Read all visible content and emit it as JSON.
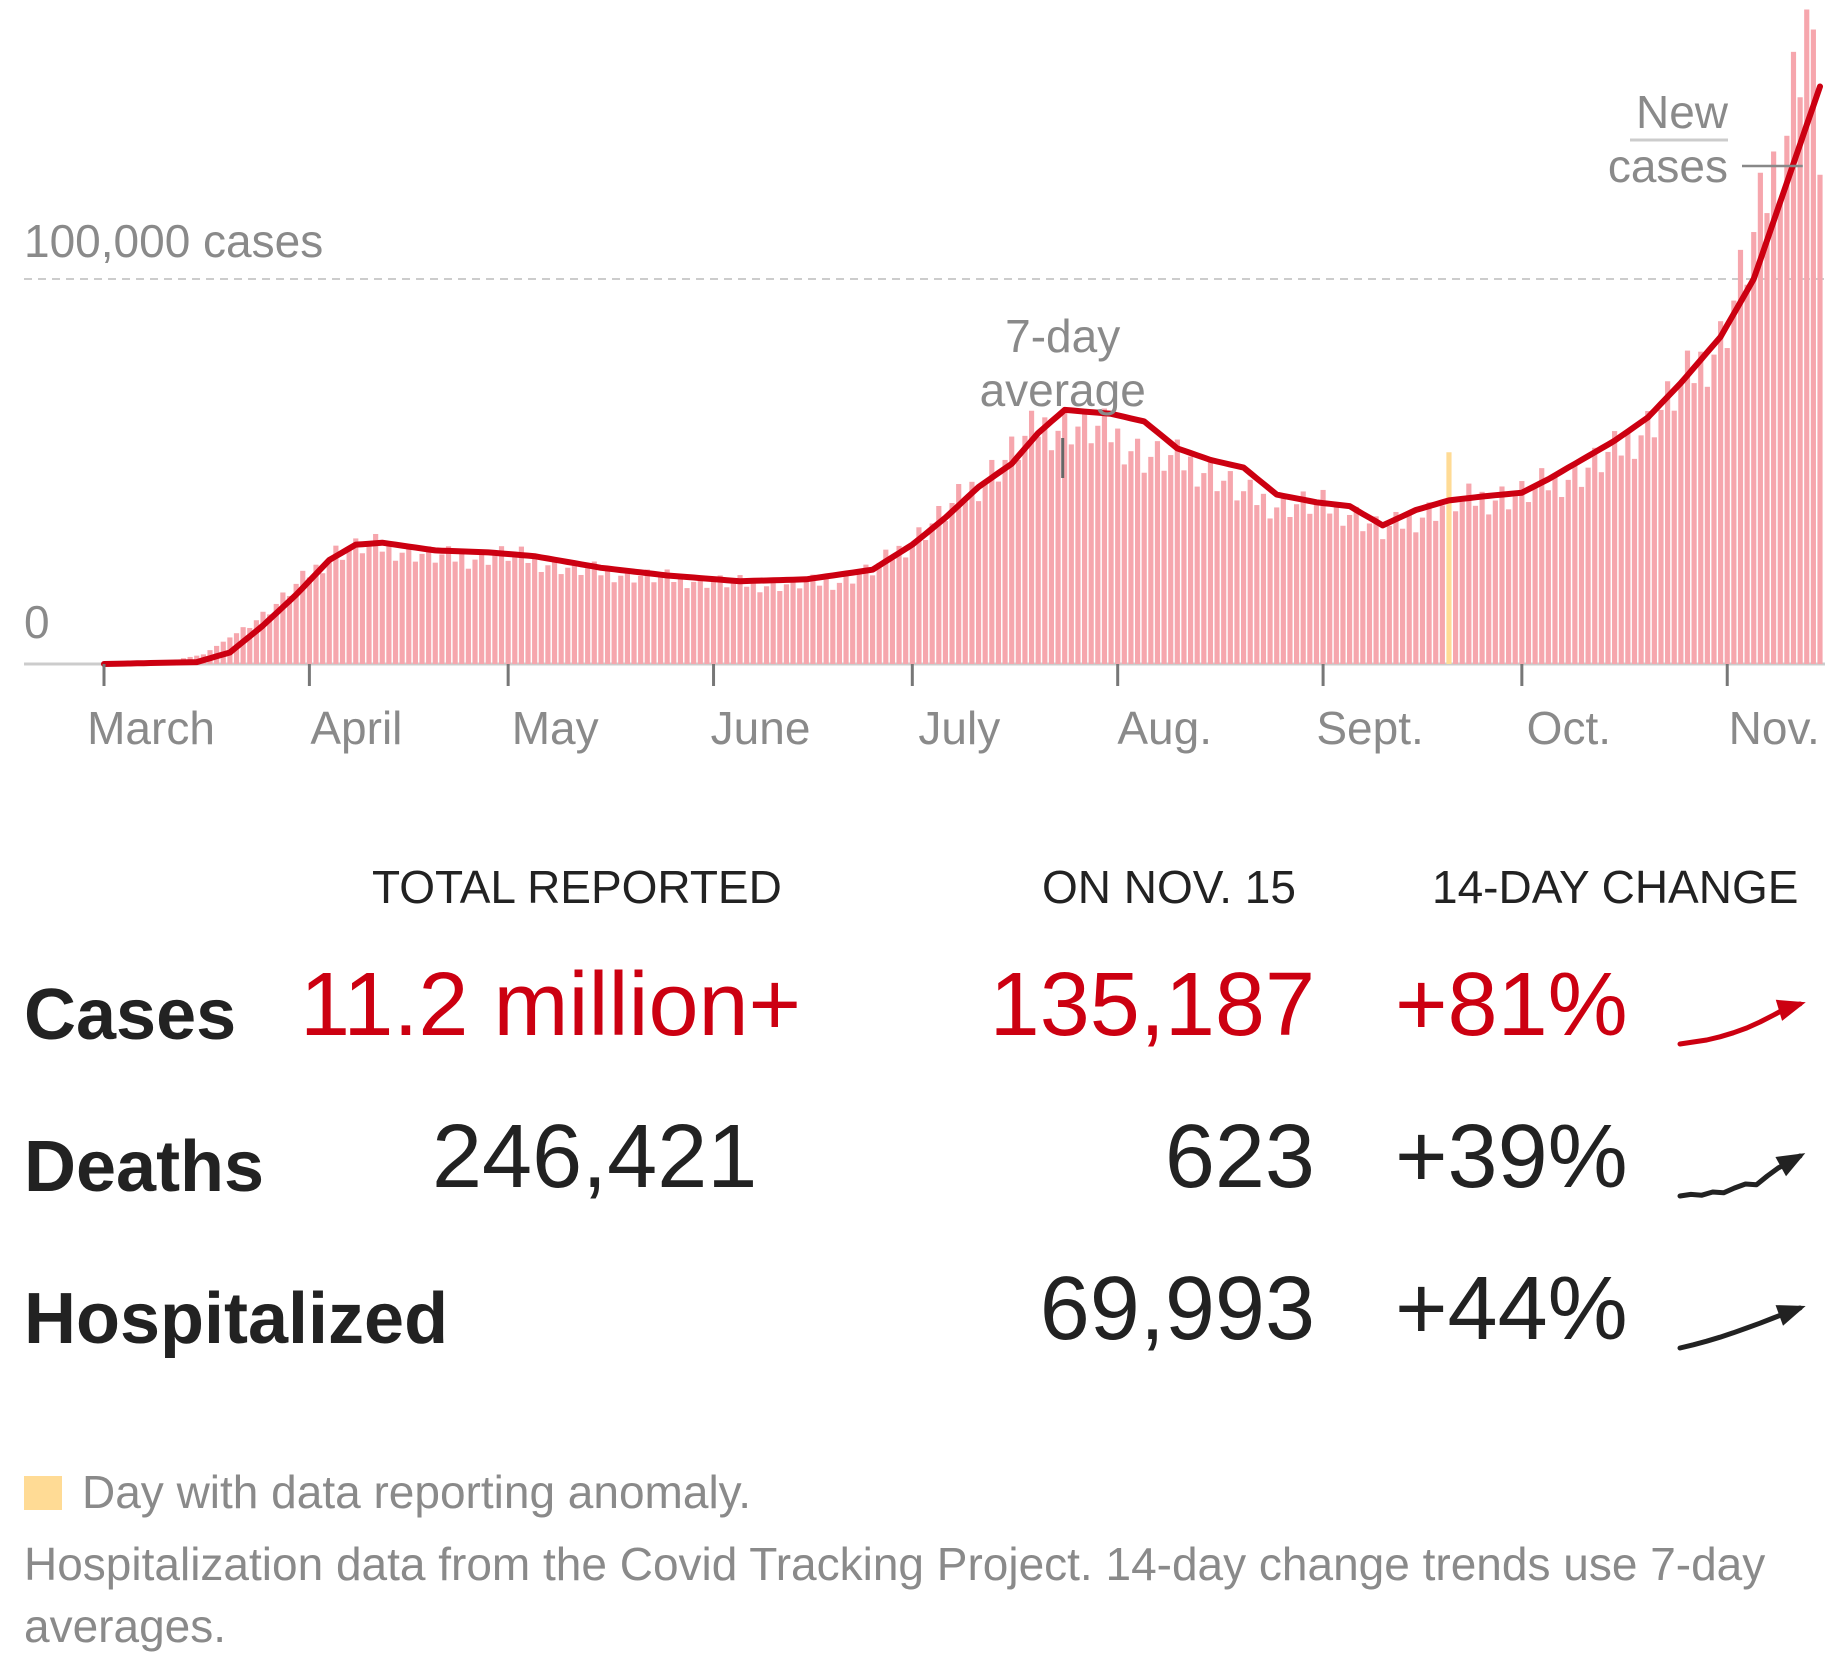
{
  "chart_data": {
    "type": "bar",
    "title": "",
    "ylim": [
      0,
      160000
    ],
    "y_gridline": {
      "value": 100000,
      "label": "100,000 cases"
    },
    "y_zero_label": "0",
    "x_start": "2020-03-01",
    "x_end": "2020-11-15",
    "x_ticks": [
      {
        "label": "March",
        "date": "2020-03-01"
      },
      {
        "label": "April",
        "date": "2020-04-01"
      },
      {
        "label": "May",
        "date": "2020-05-01"
      },
      {
        "label": "June",
        "date": "2020-06-01"
      },
      {
        "label": "July",
        "date": "2020-07-01"
      },
      {
        "label": "Aug.",
        "date": "2020-08-01"
      },
      {
        "label": "Sept.",
        "date": "2020-09-01"
      },
      {
        "label": "Oct.",
        "date": "2020-10-01"
      },
      {
        "label": "Nov.",
        "date": "2020-11-01"
      }
    ],
    "anomaly_date": "2020-09-20",
    "series": [
      {
        "name": "New cases",
        "style": "bars",
        "color": "#f6a6ad",
        "anchors": [
          [
            "2020-03-01",
            0
          ],
          [
            "2020-03-10",
            500
          ],
          [
            "2020-03-16",
            2500
          ],
          [
            "2020-03-21",
            8000
          ],
          [
            "2020-03-26",
            14000
          ],
          [
            "2020-03-31",
            22000
          ],
          [
            "2020-04-05",
            29000
          ],
          [
            "2020-04-10",
            31000
          ],
          [
            "2020-04-15",
            29500
          ],
          [
            "2020-04-20",
            28000
          ],
          [
            "2020-04-25",
            27500
          ],
          [
            "2020-05-01",
            28500
          ],
          [
            "2020-05-10",
            25000
          ],
          [
            "2020-05-20",
            23000
          ],
          [
            "2020-05-31",
            21500
          ],
          [
            "2020-06-10",
            20500
          ],
          [
            "2020-06-20",
            21500
          ],
          [
            "2020-06-25",
            24500
          ],
          [
            "2020-07-01",
            32000
          ],
          [
            "2020-07-05",
            38000
          ],
          [
            "2020-07-10",
            45500
          ],
          [
            "2020-07-15",
            53000
          ],
          [
            "2020-07-20",
            61500
          ],
          [
            "2020-07-25",
            62000
          ],
          [
            "2020-07-31",
            60000
          ],
          [
            "2020-08-05",
            54000
          ],
          [
            "2020-08-10",
            53000
          ],
          [
            "2020-08-15",
            50000
          ],
          [
            "2020-08-20",
            44000
          ],
          [
            "2020-08-25",
            41500
          ],
          [
            "2020-08-31",
            41500
          ],
          [
            "2020-09-05",
            39500
          ],
          [
            "2020-09-10",
            34500
          ],
          [
            "2020-09-15",
            38000
          ],
          [
            "2020-09-20",
            42000
          ],
          [
            "2020-09-25",
            43000
          ],
          [
            "2020-10-01",
            44000
          ],
          [
            "2020-10-05",
            47000
          ],
          [
            "2020-10-10",
            50000
          ],
          [
            "2020-10-15",
            55000
          ],
          [
            "2020-10-20",
            62000
          ],
          [
            "2020-10-25",
            72000
          ],
          [
            "2020-10-31",
            84000
          ],
          [
            "2020-11-05",
            110000
          ],
          [
            "2020-11-10",
            140000
          ],
          [
            "2020-11-13",
            170000
          ],
          [
            "2020-11-15",
            135187
          ]
        ]
      },
      {
        "name": "7-day average",
        "style": "line",
        "color": "#cc0011",
        "anchors": [
          [
            "2020-03-01",
            0
          ],
          [
            "2020-03-15",
            500
          ],
          [
            "2020-03-20",
            3000
          ],
          [
            "2020-03-25",
            10000
          ],
          [
            "2020-03-30",
            18000
          ],
          [
            "2020-04-04",
            27000
          ],
          [
            "2020-04-08",
            31000
          ],
          [
            "2020-04-12",
            31500
          ],
          [
            "2020-04-20",
            29500
          ],
          [
            "2020-04-28",
            29000
          ],
          [
            "2020-05-05",
            28000
          ],
          [
            "2020-05-15",
            25000
          ],
          [
            "2020-05-25",
            23000
          ],
          [
            "2020-06-05",
            21500
          ],
          [
            "2020-06-15",
            22000
          ],
          [
            "2020-06-25",
            24500
          ],
          [
            "2020-07-01",
            31000
          ],
          [
            "2020-07-06",
            38000
          ],
          [
            "2020-07-11",
            46000
          ],
          [
            "2020-07-16",
            52000
          ],
          [
            "2020-07-20",
            60000
          ],
          [
            "2020-07-24",
            66000
          ],
          [
            "2020-07-31",
            65000
          ],
          [
            "2020-08-05",
            63000
          ],
          [
            "2020-08-10",
            56000
          ],
          [
            "2020-08-15",
            53000
          ],
          [
            "2020-08-20",
            51000
          ],
          [
            "2020-08-25",
            44000
          ],
          [
            "2020-08-31",
            42000
          ],
          [
            "2020-09-05",
            41000
          ],
          [
            "2020-09-10",
            36000
          ],
          [
            "2020-09-15",
            40000
          ],
          [
            "2020-09-20",
            42500
          ],
          [
            "2020-09-25",
            43500
          ],
          [
            "2020-10-01",
            44500
          ],
          [
            "2020-10-05",
            48000
          ],
          [
            "2020-10-10",
            53000
          ],
          [
            "2020-10-15",
            58000
          ],
          [
            "2020-10-20",
            64000
          ],
          [
            "2020-10-25",
            73000
          ],
          [
            "2020-10-31",
            85000
          ],
          [
            "2020-11-05",
            100000
          ],
          [
            "2020-11-10",
            125000
          ],
          [
            "2020-11-15",
            150000
          ]
        ]
      }
    ],
    "annotations": [
      {
        "lines": [
          "New",
          "cases"
        ],
        "date": "2020-11-13"
      },
      {
        "lines": [
          "7-day",
          "average"
        ],
        "date": "2020-07-24"
      }
    ]
  },
  "colors": {
    "bars": "#f6a6ad",
    "line": "#cc0011",
    "anomaly": "#ffdb95",
    "gray_text": "#8a8a8a",
    "dark_text": "#222222",
    "red_text": "#cc0011"
  },
  "stats": {
    "headers": {
      "total": "TOTAL REPORTED",
      "on_date": "ON NOV. 15",
      "change": "14-DAY CHANGE"
    },
    "rows": [
      {
        "label": "Cases",
        "total": "11.2 million+",
        "on_date": "135,187",
        "change": "+81%",
        "color": "#cc0011",
        "trend": [
          0,
          0.05,
          0.1,
          0.18,
          0.28,
          0.4,
          0.55,
          0.72,
          0.9,
          1
        ]
      },
      {
        "label": "Deaths",
        "total": "246,421",
        "on_date": "623",
        "change": "+39%",
        "color": "#222222",
        "trend": [
          0,
          0.04,
          0.02,
          0.1,
          0.08,
          0.2,
          0.3,
          0.28,
          0.5,
          0.7,
          0.85,
          1
        ]
      },
      {
        "label": "Hospitalized",
        "total": "",
        "on_date": "69,993",
        "change": "+44%",
        "color": "#222222",
        "trend": [
          0,
          0.08,
          0.17,
          0.27,
          0.38,
          0.5,
          0.62,
          0.75,
          0.88,
          1
        ]
      }
    ]
  },
  "footnotes": {
    "legend": "Day with data reporting anomaly.",
    "source": "Hospitalization data from the Covid Tracking Project. 14-day change trends use 7-day averages."
  }
}
